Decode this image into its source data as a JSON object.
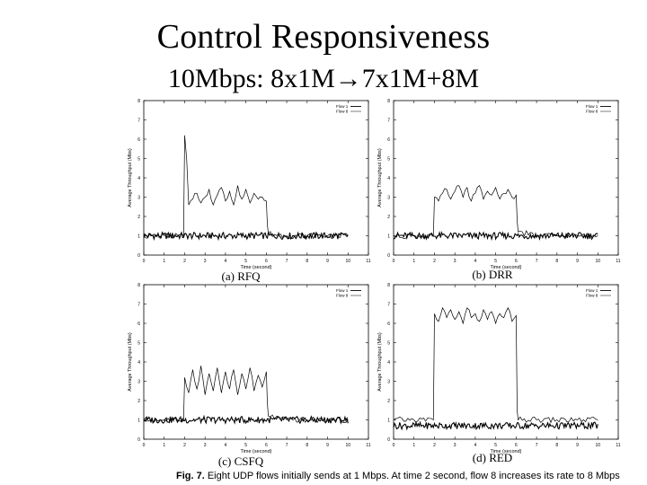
{
  "slide": {
    "title": "Control Responsiveness",
    "subtitle_prefix": "10Mbps: 8x1M",
    "arrow": "→",
    "subtitle_suffix": "7x1M+8M",
    "figure_caption_label": "Fig. 7.",
    "figure_caption_text": "Eight UDP flows initially sends at 1 Mbps. At time 2 second, flow 8 increases its rate to 8 Mbps"
  },
  "chart_data": [
    {
      "type": "line",
      "caption": "(a) RFQ",
      "xlabel": "Time (second)",
      "ylabel": "Average Throughput (Mbs)",
      "xlim": [
        0,
        11
      ],
      "ylim": [
        0,
        8
      ],
      "xticks": [
        "0",
        "1",
        "2",
        "3",
        "4",
        "5",
        "6",
        "7",
        "8",
        "9",
        "10",
        "11"
      ],
      "yticks": [
        "0",
        "1",
        "2",
        "3",
        "4",
        "5",
        "6",
        "7",
        "8"
      ],
      "legend": [
        "Flow 1",
        "Flow 8"
      ],
      "legend_position": "top-right",
      "flow1_level": 1.0,
      "flow8": [
        [
          0.0,
          1.0
        ],
        [
          1.0,
          1.0
        ],
        [
          1.95,
          1.0
        ],
        [
          2.0,
          6.2
        ],
        [
          2.1,
          5.0
        ],
        [
          2.2,
          2.6
        ],
        [
          2.4,
          2.9
        ],
        [
          2.6,
          3.2
        ],
        [
          2.8,
          2.7
        ],
        [
          3.0,
          3.0
        ],
        [
          3.2,
          3.4
        ],
        [
          3.4,
          2.6
        ],
        [
          3.6,
          3.1
        ],
        [
          3.8,
          3.5
        ],
        [
          4.0,
          2.8
        ],
        [
          4.2,
          3.3
        ],
        [
          4.4,
          2.6
        ],
        [
          4.6,
          3.6
        ],
        [
          4.8,
          2.9
        ],
        [
          5.0,
          3.4
        ],
        [
          5.2,
          2.7
        ],
        [
          5.4,
          3.2
        ],
        [
          5.6,
          2.9
        ],
        [
          5.8,
          3.0
        ],
        [
          6.0,
          2.8
        ],
        [
          6.05,
          1.6
        ],
        [
          6.1,
          1.1
        ],
        [
          7.0,
          1.0
        ],
        [
          8.0,
          1.0
        ],
        [
          9.0,
          1.0
        ],
        [
          10.0,
          1.0
        ]
      ],
      "series_x_range": [
        0,
        10
      ]
    },
    {
      "type": "line",
      "caption": "(b) DRR",
      "xlabel": "Time (second)",
      "ylabel": "Average Throughput (Mbs)",
      "xlim": [
        0,
        11
      ],
      "ylim": [
        0,
        8
      ],
      "xticks": [
        "0",
        "1",
        "2",
        "3",
        "4",
        "5",
        "6",
        "7",
        "8",
        "9",
        "10",
        "11"
      ],
      "yticks": [
        "0",
        "1",
        "2",
        "3",
        "4",
        "5",
        "6",
        "7",
        "8"
      ],
      "legend": [
        "Flow 1",
        "Flow 8"
      ],
      "legend_position": "top-right",
      "flow1_level": 1.0,
      "flow8": [
        [
          0.0,
          1.0
        ],
        [
          1.0,
          1.0
        ],
        [
          1.95,
          1.0
        ],
        [
          2.0,
          3.0
        ],
        [
          2.2,
          2.8
        ],
        [
          2.4,
          3.2
        ],
        [
          2.6,
          3.4
        ],
        [
          2.8,
          2.9
        ],
        [
          3.0,
          3.3
        ],
        [
          3.2,
          3.6
        ],
        [
          3.4,
          3.0
        ],
        [
          3.6,
          3.5
        ],
        [
          3.8,
          2.8
        ],
        [
          4.0,
          3.2
        ],
        [
          4.2,
          3.6
        ],
        [
          4.4,
          2.9
        ],
        [
          4.6,
          3.3
        ],
        [
          4.8,
          3.1
        ],
        [
          5.0,
          3.5
        ],
        [
          5.2,
          2.9
        ],
        [
          5.4,
          3.2
        ],
        [
          5.6,
          3.4
        ],
        [
          5.8,
          3.0
        ],
        [
          6.0,
          3.1
        ],
        [
          6.05,
          1.8
        ],
        [
          6.1,
          1.2
        ],
        [
          7.0,
          1.0
        ],
        [
          8.0,
          1.0
        ],
        [
          9.0,
          1.0
        ],
        [
          10.0,
          1.0
        ]
      ],
      "series_x_range": [
        0,
        10
      ]
    },
    {
      "type": "line",
      "caption": "(c) CSFQ",
      "xlabel": "Time (second)",
      "ylabel": "Average Throughput (Mbs)",
      "xlim": [
        0,
        11
      ],
      "ylim": [
        0,
        8
      ],
      "xticks": [
        "0",
        "1",
        "2",
        "3",
        "4",
        "5",
        "6",
        "7",
        "8",
        "9",
        "10",
        "11"
      ],
      "yticks": [
        "0",
        "1",
        "2",
        "3",
        "4",
        "5",
        "6",
        "7",
        "8"
      ],
      "legend": [
        "Flow 1",
        "Flow 8"
      ],
      "legend_position": "top-right",
      "flow1_level": 1.0,
      "flow8": [
        [
          0.0,
          1.0
        ],
        [
          1.0,
          1.0
        ],
        [
          1.95,
          1.0
        ],
        [
          2.0,
          3.2
        ],
        [
          2.2,
          2.4
        ],
        [
          2.4,
          3.6
        ],
        [
          2.6,
          2.6
        ],
        [
          2.8,
          3.8
        ],
        [
          3.0,
          2.3
        ],
        [
          3.2,
          3.4
        ],
        [
          3.4,
          2.5
        ],
        [
          3.6,
          3.7
        ],
        [
          3.8,
          2.4
        ],
        [
          4.0,
          3.5
        ],
        [
          4.2,
          2.6
        ],
        [
          4.4,
          3.6
        ],
        [
          4.6,
          2.3
        ],
        [
          4.8,
          3.4
        ],
        [
          5.0,
          2.6
        ],
        [
          5.2,
          3.7
        ],
        [
          5.4,
          2.5
        ],
        [
          5.6,
          3.3
        ],
        [
          5.8,
          2.7
        ],
        [
          6.0,
          3.5
        ],
        [
          6.05,
          1.9
        ],
        [
          6.1,
          1.2
        ],
        [
          7.0,
          1.0
        ],
        [
          8.0,
          1.0
        ],
        [
          9.0,
          1.0
        ],
        [
          10.0,
          1.0
        ]
      ],
      "series_x_range": [
        0,
        10
      ]
    },
    {
      "type": "line",
      "caption": "(d) RED",
      "xlabel": "Time (second)",
      "ylabel": "Average Throughput (Mbs)",
      "xlim": [
        0,
        11
      ],
      "ylim": [
        0,
        8
      ],
      "xticks": [
        "0",
        "1",
        "2",
        "3",
        "4",
        "5",
        "6",
        "7",
        "8",
        "9",
        "10",
        "11"
      ],
      "yticks": [
        "0",
        "1",
        "2",
        "3",
        "4",
        "5",
        "6",
        "7",
        "8"
      ],
      "legend": [
        "Flow 1",
        "Flow 8"
      ],
      "legend_position": "top-right",
      "flow1_level": 0.7,
      "flow8": [
        [
          0.0,
          1.0
        ],
        [
          1.0,
          1.0
        ],
        [
          1.95,
          1.0
        ],
        [
          2.0,
          6.5
        ],
        [
          2.2,
          6.1
        ],
        [
          2.4,
          6.8
        ],
        [
          2.6,
          6.3
        ],
        [
          2.8,
          6.7
        ],
        [
          3.0,
          6.2
        ],
        [
          3.2,
          6.6
        ],
        [
          3.4,
          6.0
        ],
        [
          3.6,
          6.8
        ],
        [
          3.8,
          6.3
        ],
        [
          4.0,
          6.5
        ],
        [
          4.2,
          6.1
        ],
        [
          4.4,
          6.7
        ],
        [
          4.6,
          6.2
        ],
        [
          4.8,
          6.6
        ],
        [
          5.0,
          6.0
        ],
        [
          5.2,
          6.5
        ],
        [
          5.4,
          6.3
        ],
        [
          5.6,
          6.8
        ],
        [
          5.8,
          6.1
        ],
        [
          6.0,
          6.4
        ],
        [
          6.05,
          1.5
        ],
        [
          6.1,
          1.0
        ],
        [
          7.0,
          1.0
        ],
        [
          8.0,
          1.0
        ],
        [
          9.0,
          1.0
        ],
        [
          10.0,
          1.0
        ]
      ],
      "series_x_range": [
        0,
        10
      ]
    }
  ]
}
